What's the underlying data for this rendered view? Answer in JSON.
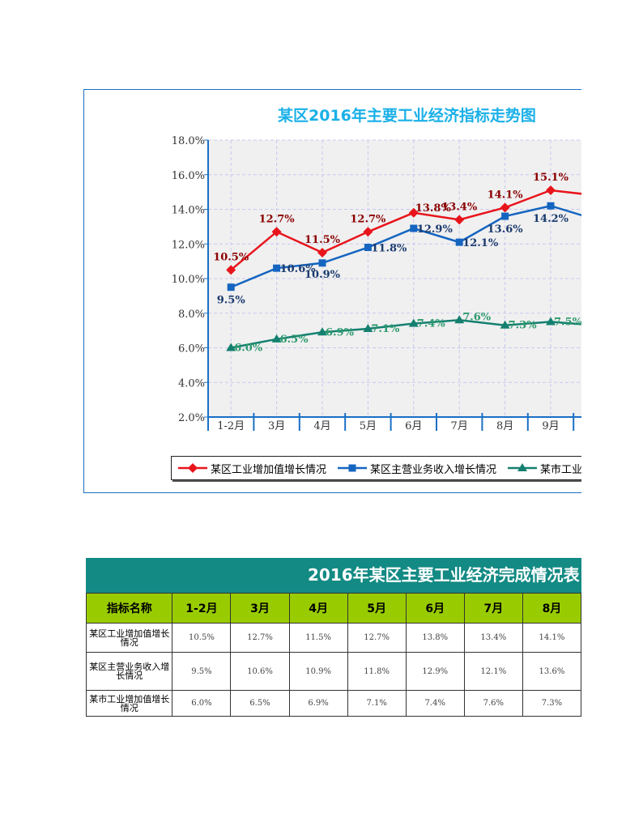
{
  "chart_data": {
    "type": "line",
    "title": "某区2016年主要工业经济指标走势图",
    "categories": [
      "1-2月",
      "3月",
      "4月",
      "5月",
      "6月",
      "7月",
      "8月",
      "9月",
      ""
    ],
    "ylim": [
      2.0,
      18.0
    ],
    "yticks": [
      "2.0%",
      "4.0%",
      "6.0%",
      "8.0%",
      "10.0%",
      "12.0%",
      "14.0%",
      "16.0%",
      "18.0%"
    ],
    "grid": true,
    "legend_position": "bottom",
    "series": [
      {
        "name": "某区工业增加值增长情况",
        "color": "#e8141c",
        "label_color": "#8b0000",
        "marker": "diamond",
        "values": [
          10.5,
          12.7,
          11.5,
          12.7,
          13.8,
          13.4,
          14.1,
          15.1,
          14.8
        ],
        "labels": [
          "10.5%",
          "12.7%",
          "11.5%",
          "12.7%",
          "13.8%",
          "13.4%",
          "14.1%",
          "15.1%",
          ""
        ]
      },
      {
        "name": "某区主营业务收入增长情况",
        "color": "#1565c0",
        "label_color": "#1a3a6e",
        "marker": "square",
        "values": [
          9.5,
          10.6,
          10.9,
          11.8,
          12.9,
          12.1,
          13.6,
          14.2,
          13.4
        ],
        "labels": [
          "9.5%",
          "10.6%",
          "10.9%",
          "11.8%",
          "12.9%",
          "12.1%",
          "13.6%",
          "14.2%",
          ""
        ]
      },
      {
        "name": "某市工业增加值增长情况",
        "color": "#14806f",
        "label_color": "#2e9a6e",
        "marker": "triangle",
        "values": [
          6.0,
          6.5,
          6.9,
          7.1,
          7.4,
          7.6,
          7.3,
          7.5,
          7.3
        ],
        "labels": [
          "6.0%",
          "6.5%",
          "6.9%",
          "7.1%",
          "7.4%",
          "7.6%",
          "7.3%",
          "7.5%",
          ""
        ]
      }
    ]
  },
  "table": {
    "title": "2016年某区主要工业经济完成情况表",
    "headers": [
      "指标名称",
      "1-2月",
      "3月",
      "4月",
      "5月",
      "6月",
      "7月",
      "8月"
    ],
    "rows": [
      {
        "name": "某区工业增加值增长情况",
        "values": [
          "10.5%",
          "12.7%",
          "11.5%",
          "12.7%",
          "13.8%",
          "13.4%",
          "14.1%"
        ]
      },
      {
        "name": "某区主营业务收入增长情况",
        "values": [
          "9.5%",
          "10.6%",
          "10.9%",
          "11.8%",
          "12.9%",
          "12.1%",
          "13.6%"
        ]
      },
      {
        "name": "某市工业增加值增长情况",
        "values": [
          "6.0%",
          "6.5%",
          "6.9%",
          "7.1%",
          "7.4%",
          "7.6%",
          "7.3%"
        ]
      }
    ]
  }
}
